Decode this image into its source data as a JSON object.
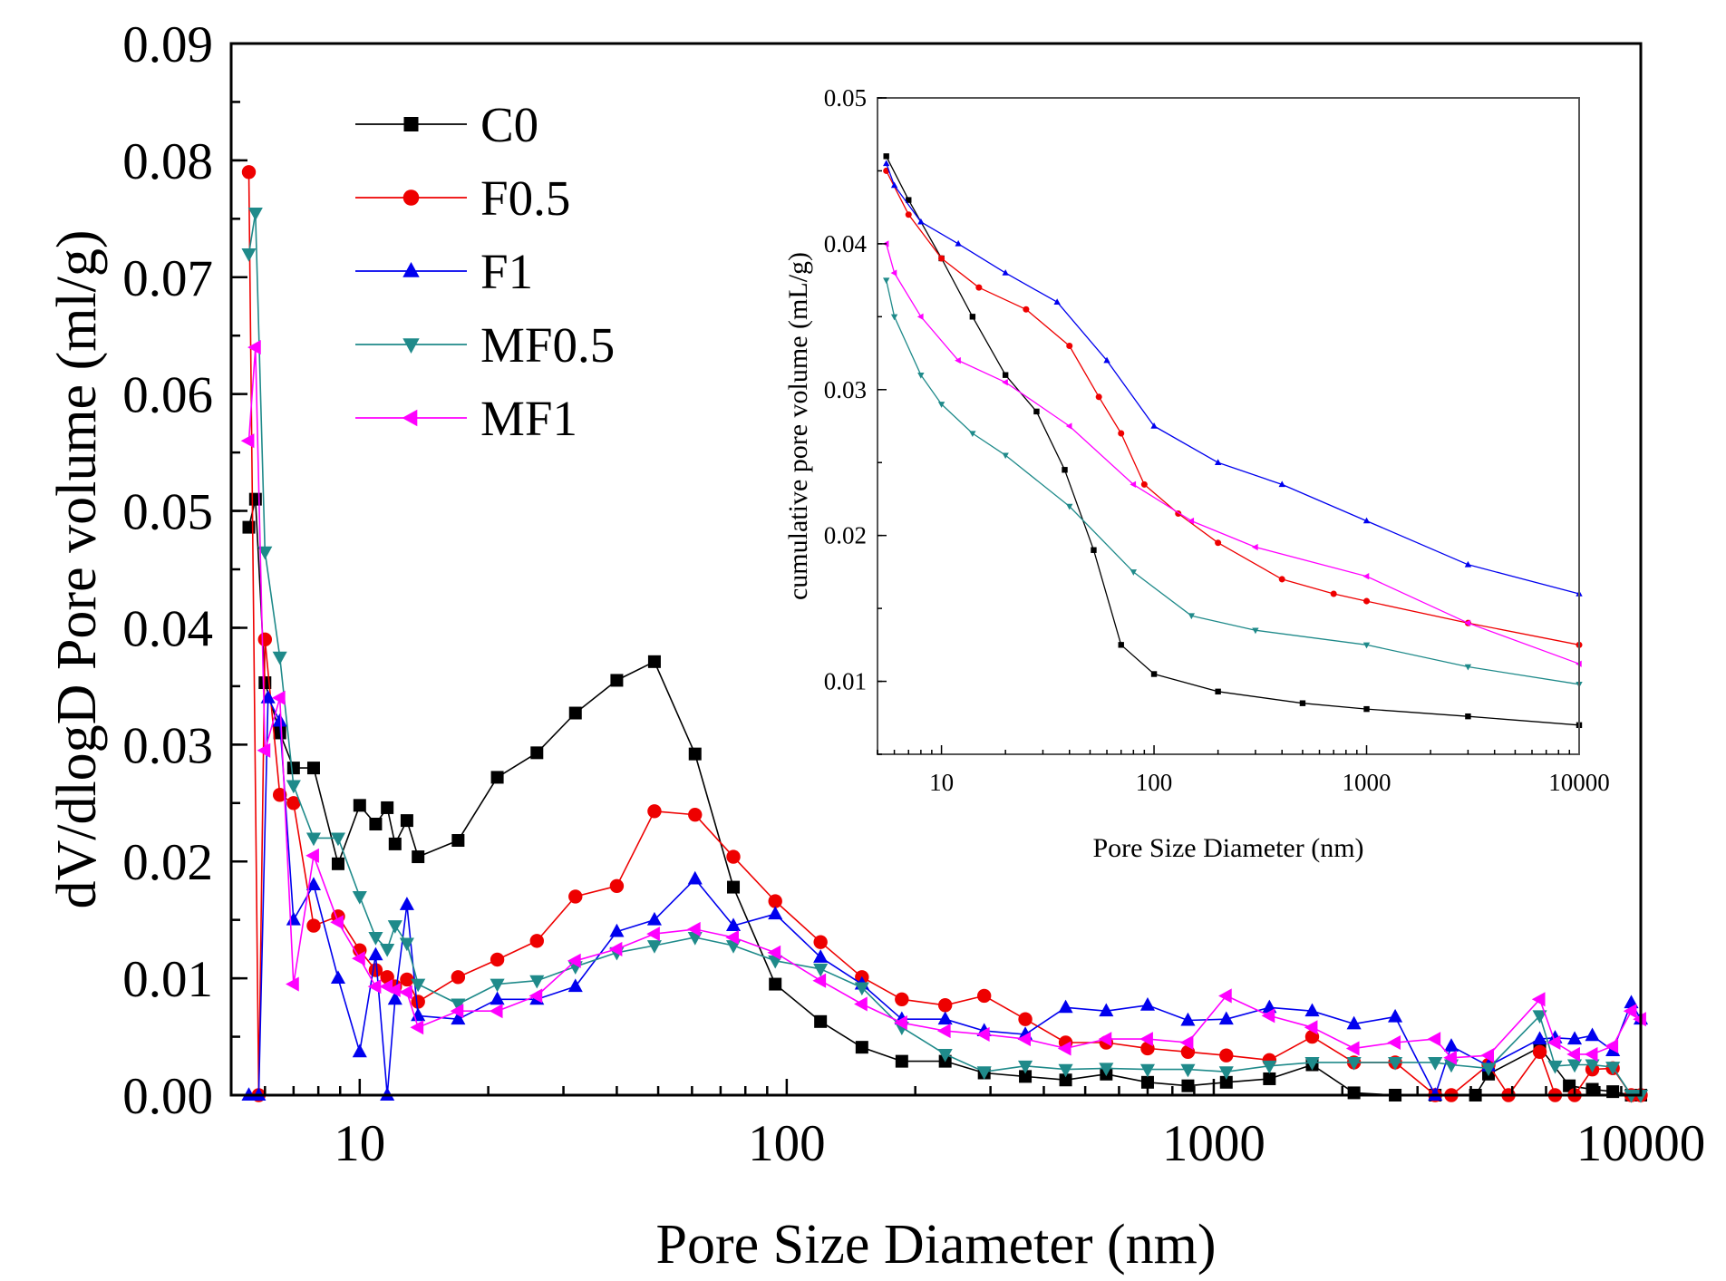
{
  "chart_data": [
    {
      "type": "line",
      "role": "main",
      "xscale": "log",
      "xlim": [
        5,
        10000
      ],
      "ylim": [
        0,
        0.09
      ],
      "xlabel": "Pore Size Diameter (nm)",
      "ylabel": "dV/dlogD Pore volume (ml/g)",
      "x_tick_labels": [
        "10",
        "100",
        "1000",
        "10000"
      ],
      "y_tick_labels": [
        "0.00",
        "0.01",
        "0.02",
        "0.03",
        "0.04",
        "0.05",
        "0.06",
        "0.07",
        "0.08",
        "0.09"
      ],
      "legend_position": "top-left",
      "series": [
        {
          "name": "C0",
          "color": "#000000",
          "marker": "square",
          "x": [
            5.5,
            5.7,
            6.0,
            6.5,
            7.0,
            7.8,
            8.9,
            10,
            10.9,
            11.6,
            12.1,
            12.9,
            13.7,
            17,
            21,
            26,
            32,
            40,
            49,
            61,
            75,
            94,
            120,
            150,
            186,
            235,
            290,
            362,
            450,
            560,
            700,
            870,
            1070,
            1350,
            1700,
            2130,
            2660,
            3300,
            4100,
            4400,
            5800,
            6800,
            7700,
            8600,
            9500,
            10000
          ],
          "y": [
            0.0486,
            0.051,
            0.0353,
            0.031,
            0.028,
            0.028,
            0.0198,
            0.0248,
            0.0232,
            0.0246,
            0.0215,
            0.0235,
            0.0204,
            0.0218,
            0.0272,
            0.0293,
            0.0327,
            0.0355,
            0.0371,
            0.0292,
            0.0178,
            0.0095,
            0.0063,
            0.0041,
            0.0029,
            0.0029,
            0.0019,
            0.0016,
            0.0013,
            0.0018,
            0.0011,
            0.0008,
            0.0011,
            0.0014,
            0.0026,
            0.0002,
            0.0,
            0.0,
            0.0,
            0.0018,
            0.0041,
            0.0008,
            0.0005,
            0.0003,
            0.0,
            0.0
          ]
        },
        {
          "name": "F0.5",
          "color": "#ee0000",
          "marker": "circle",
          "x": [
            5.5,
            5.8,
            6.0,
            6.5,
            7.0,
            7.8,
            8.9,
            10,
            10.9,
            11.6,
            12.1,
            12.9,
            13.7,
            17,
            21,
            26,
            32,
            40,
            49,
            61,
            75,
            94,
            120,
            150,
            186,
            235,
            290,
            362,
            450,
            560,
            700,
            870,
            1070,
            1350,
            1700,
            2130,
            2660,
            3300,
            3600,
            4400,
            4900,
            5800,
            6300,
            7000,
            7700,
            8600,
            9500,
            10000
          ],
          "y": [
            0.079,
            0.0,
            0.039,
            0.0257,
            0.025,
            0.0145,
            0.0153,
            0.0124,
            0.0107,
            0.0101,
            0.0093,
            0.0099,
            0.008,
            0.0101,
            0.0116,
            0.0132,
            0.017,
            0.0179,
            0.0243,
            0.024,
            0.0204,
            0.0166,
            0.0131,
            0.0101,
            0.0082,
            0.0077,
            0.0085,
            0.0065,
            0.0045,
            0.0045,
            0.004,
            0.0037,
            0.0034,
            0.003,
            0.005,
            0.0028,
            0.0028,
            0.0,
            0.0,
            0.0026,
            0.0,
            0.0037,
            0.0,
            0.0,
            0.0022,
            0.0023,
            0.0,
            0.0
          ]
        },
        {
          "name": "F1",
          "color": "#0000ee",
          "marker": "triangle-up",
          "x": [
            5.5,
            5.8,
            6.1,
            6.5,
            7.0,
            7.8,
            8.9,
            10,
            10.9,
            11.6,
            12.1,
            12.9,
            13.7,
            17,
            21,
            26,
            32,
            40,
            49,
            61,
            75,
            94,
            120,
            150,
            186,
            235,
            290,
            362,
            450,
            560,
            700,
            870,
            1070,
            1350,
            1700,
            2130,
            2660,
            3300,
            3600,
            4400,
            5800,
            6300,
            7000,
            7700,
            8600,
            9500,
            10000
          ],
          "y": [
            0.0,
            0.0,
            0.034,
            0.032,
            0.015,
            0.018,
            0.01,
            0.0037,
            0.012,
            0.0,
            0.0082,
            0.0163,
            0.0068,
            0.0065,
            0.0082,
            0.0082,
            0.0093,
            0.014,
            0.015,
            0.0185,
            0.0145,
            0.0155,
            0.0118,
            0.0095,
            0.0065,
            0.0065,
            0.0055,
            0.0052,
            0.0075,
            0.0072,
            0.0077,
            0.0064,
            0.0065,
            0.0075,
            0.0072,
            0.0061,
            0.0067,
            0.0,
            0.0042,
            0.0025,
            0.0048,
            0.0049,
            0.0048,
            0.0051,
            0.0038,
            0.0079,
            0.0065
          ]
        },
        {
          "name": "MF0.5",
          "color": "#1f8a8a",
          "marker": "triangle-down",
          "x": [
            5.5,
            5.7,
            6.0,
            6.5,
            7.0,
            7.8,
            8.9,
            10,
            10.9,
            11.6,
            12.1,
            12.9,
            13.7,
            17,
            21,
            26,
            32,
            40,
            49,
            61,
            75,
            94,
            120,
            150,
            186,
            235,
            290,
            362,
            450,
            560,
            700,
            870,
            1070,
            1350,
            1700,
            2130,
            2660,
            3300,
            3600,
            4400,
            5800,
            6300,
            7000,
            7700,
            8600,
            9500,
            10000
          ],
          "y": [
            0.072,
            0.0755,
            0.0465,
            0.0375,
            0.0265,
            0.022,
            0.022,
            0.017,
            0.0135,
            0.0125,
            0.0145,
            0.013,
            0.0095,
            0.0078,
            0.0095,
            0.0098,
            0.011,
            0.0122,
            0.0128,
            0.0135,
            0.0128,
            0.0115,
            0.0108,
            0.0092,
            0.0058,
            0.0035,
            0.002,
            0.0025,
            0.0022,
            0.0023,
            0.0022,
            0.0022,
            0.002,
            0.0025,
            0.0028,
            0.0028,
            0.0028,
            0.0028,
            0.0026,
            0.0023,
            0.0068,
            0.0025,
            0.0026,
            0.0026,
            0.0024,
            0.0,
            0.0
          ]
        },
        {
          "name": "MF1",
          "color": "#ff00ff",
          "marker": "triangle-left",
          "x": [
            5.5,
            5.7,
            6.0,
            6.5,
            7.0,
            7.8,
            8.9,
            10,
            10.9,
            11.6,
            12.1,
            12.9,
            13.7,
            17,
            21,
            26,
            32,
            40,
            49,
            61,
            75,
            94,
            120,
            150,
            186,
            235,
            290,
            362,
            450,
            560,
            700,
            870,
            1070,
            1350,
            1700,
            2130,
            2660,
            3300,
            3600,
            4400,
            5800,
            6300,
            7000,
            7700,
            8600,
            9500,
            10000
          ],
          "y": [
            0.056,
            0.064,
            0.0295,
            0.034,
            0.0095,
            0.0205,
            0.0148,
            0.0117,
            0.0093,
            0.0093,
            0.009,
            0.0088,
            0.0058,
            0.0072,
            0.0072,
            0.0085,
            0.0115,
            0.0125,
            0.0138,
            0.0142,
            0.0135,
            0.0122,
            0.0098,
            0.0078,
            0.0062,
            0.0055,
            0.0052,
            0.0048,
            0.004,
            0.0048,
            0.0048,
            0.0045,
            0.0085,
            0.0068,
            0.0058,
            0.004,
            0.0045,
            0.0048,
            0.0032,
            0.0034,
            0.0082,
            0.0045,
            0.0035,
            0.0035,
            0.0042,
            0.0072,
            0.0065
          ]
        }
      ]
    },
    {
      "type": "line",
      "role": "inset",
      "xscale": "log",
      "xlim": [
        5,
        10000
      ],
      "ylim": [
        0.005,
        0.05
      ],
      "xlabel": "Pore Size Diameter (nm)",
      "ylabel": "cumulative pore volume (mL/g)",
      "x_tick_labels": [
        "10",
        "100",
        "1000",
        "10000"
      ],
      "y_tick_labels": [
        "0.01",
        "0.02",
        "0.03",
        "0.04",
        "0.05"
      ],
      "series": [
        {
          "name": "C0",
          "color": "#000000",
          "marker": "square",
          "x": [
            5.5,
            7,
            10,
            14,
            20,
            28,
            38,
            52,
            70,
            100,
            200,
            500,
            1000,
            3000,
            10000
          ],
          "y": [
            0.046,
            0.043,
            0.039,
            0.035,
            0.031,
            0.0285,
            0.0245,
            0.019,
            0.0125,
            0.0105,
            0.0093,
            0.0085,
            0.0081,
            0.0076,
            0.007
          ]
        },
        {
          "name": "F0.5",
          "color": "#ee0000",
          "marker": "circle",
          "x": [
            5.5,
            7,
            10,
            15,
            25,
            40,
            55,
            70,
            90,
            130,
            200,
            400,
            700,
            1000,
            3000,
            10000
          ],
          "y": [
            0.045,
            0.042,
            0.039,
            0.037,
            0.0355,
            0.033,
            0.0295,
            0.027,
            0.0235,
            0.0215,
            0.0195,
            0.017,
            0.016,
            0.0155,
            0.014,
            0.0125
          ]
        },
        {
          "name": "F1",
          "color": "#0000ee",
          "marker": "triangle-up",
          "x": [
            5.5,
            6,
            8,
            12,
            20,
            35,
            60,
            100,
            200,
            400,
            1000,
            3000,
            10000
          ],
          "y": [
            0.0455,
            0.044,
            0.0415,
            0.04,
            0.038,
            0.036,
            0.032,
            0.0275,
            0.025,
            0.0235,
            0.021,
            0.018,
            0.016
          ]
        },
        {
          "name": "MF0.5",
          "color": "#1f8a8a",
          "marker": "triangle-down",
          "x": [
            5.5,
            6,
            8,
            10,
            14,
            20,
            40,
            80,
            150,
            300,
            1000,
            3000,
            10000
          ],
          "y": [
            0.0375,
            0.035,
            0.031,
            0.029,
            0.027,
            0.0255,
            0.022,
            0.0175,
            0.0145,
            0.0135,
            0.0125,
            0.011,
            0.0098
          ]
        },
        {
          "name": "MF1",
          "color": "#ff00ff",
          "marker": "triangle-left",
          "x": [
            5.5,
            6,
            8,
            12,
            20,
            40,
            80,
            150,
            300,
            1000,
            3000,
            10000
          ],
          "y": [
            0.04,
            0.038,
            0.035,
            0.032,
            0.0305,
            0.0275,
            0.0235,
            0.021,
            0.0192,
            0.0172,
            0.014,
            0.0112
          ]
        }
      ]
    }
  ]
}
